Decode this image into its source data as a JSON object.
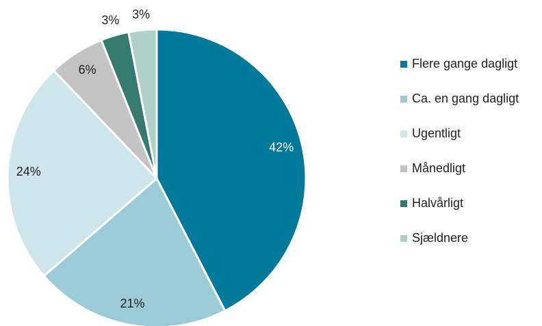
{
  "chart_data": {
    "type": "pie",
    "categories": [
      "Flere gange dagligt",
      "Ca. en gang dagligt",
      "Ugentligt",
      "Månedligt",
      "Halvårligt",
      "Sjældnere"
    ],
    "values": [
      42,
      21,
      24,
      6,
      3,
      3
    ],
    "value_labels": [
      "42%",
      "21%",
      "24%",
      "6%",
      "3%",
      "3%"
    ],
    "colors": [
      "#00799a",
      "#9ccbd8",
      "#cfe5ec",
      "#c3c3c3",
      "#357a6e",
      "#b0cfc6"
    ],
    "legend": "right"
  }
}
